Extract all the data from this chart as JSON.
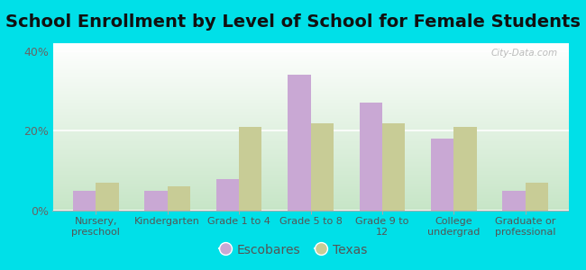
{
  "title": "School Enrollment by Level of School for Female Students",
  "categories": [
    "Nursery,\npreschool",
    "Kindergarten",
    "Grade 1 to 4",
    "Grade 5 to 8",
    "Grade 9 to\n12",
    "College\nundergrad",
    "Graduate or\nprofessional"
  ],
  "escobares": [
    5,
    5,
    8,
    34,
    27,
    18,
    5
  ],
  "texas": [
    7,
    6,
    21,
    22,
    22,
    21,
    7
  ],
  "escobares_color": "#c9a8d4",
  "texas_color": "#c8cc96",
  "background_outer": "#00e0e8",
  "background_inner_top": "#e8f5e0",
  "background_inner_bottom": "#d0ecd8",
  "ylim": [
    0,
    42
  ],
  "yticks": [
    0,
    20,
    40
  ],
  "ytick_labels": [
    "0%",
    "20%",
    "40%"
  ],
  "title_fontsize": 14,
  "legend_label_escobares": "Escobares",
  "legend_label_texas": "Texas",
  "watermark": "City-Data.com",
  "bar_width": 0.32
}
